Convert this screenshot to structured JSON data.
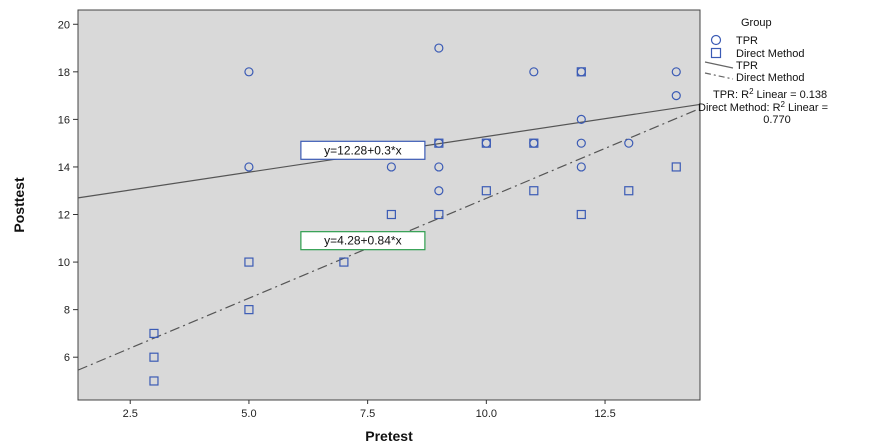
{
  "chart_data": {
    "type": "scatter",
    "xlabel": "Pretest",
    "ylabel": "Posttest",
    "xlim": [
      1.4,
      14.5
    ],
    "ylim": [
      4.2,
      20.6
    ],
    "x_ticks": [
      "2.5",
      "5.0",
      "7.5",
      "10.0",
      "12.5"
    ],
    "x_tick_values": [
      2.5,
      5.0,
      7.5,
      10.0,
      12.5
    ],
    "y_ticks": [
      "6",
      "8",
      "10",
      "12",
      "14",
      "16",
      "18",
      "20"
    ],
    "y_tick_values": [
      6,
      8,
      10,
      12,
      14,
      16,
      18,
      20
    ],
    "grid": false,
    "plot_background": "#d9d9d9",
    "marker_color": "#3b5bb5",
    "legend": {
      "title": "Group",
      "items": [
        "TPR",
        "Direct Method",
        "TPR",
        "Direct Method"
      ],
      "r2_tpr": "TPR: R",
      "r2_tpr_value": "Linear = 0.138",
      "r2_dm": "Direct Method: R",
      "r2_dm_value": "Linear =",
      "r2_dm_value2": "0.770",
      "superscript": "2"
    },
    "series": [
      {
        "name": "TPR",
        "marker": "circle",
        "points": [
          [
            5,
            18
          ],
          [
            5,
            14
          ],
          [
            8,
            14
          ],
          [
            9,
            19
          ],
          [
            9,
            15
          ],
          [
            9,
            14
          ],
          [
            9,
            13
          ],
          [
            10,
            15
          ],
          [
            11,
            18
          ],
          [
            11,
            15
          ],
          [
            12,
            18
          ],
          [
            12,
            16
          ],
          [
            12,
            15
          ],
          [
            12,
            14
          ],
          [
            13,
            15
          ],
          [
            14,
            18
          ],
          [
            14,
            17
          ]
        ],
        "fit": {
          "intercept": 12.28,
          "slope": 0.3,
          "label": "y=12.28+0.3*x",
          "style": "solid"
        }
      },
      {
        "name": "Direct Method",
        "marker": "square",
        "points": [
          [
            3,
            7
          ],
          [
            3,
            6
          ],
          [
            3,
            5
          ],
          [
            5,
            10
          ],
          [
            5,
            8
          ],
          [
            7,
            10
          ],
          [
            8,
            12
          ],
          [
            9,
            15
          ],
          [
            9,
            12
          ],
          [
            10,
            15
          ],
          [
            10,
            13
          ],
          [
            11,
            15
          ],
          [
            11,
            13
          ],
          [
            12,
            18
          ],
          [
            12,
            12
          ],
          [
            13,
            13
          ],
          [
            14,
            14
          ]
        ],
        "fit": {
          "intercept": 4.28,
          "slope": 0.84,
          "label": "y=4.28+0.84*x",
          "style": "dashdot"
        }
      }
    ]
  }
}
